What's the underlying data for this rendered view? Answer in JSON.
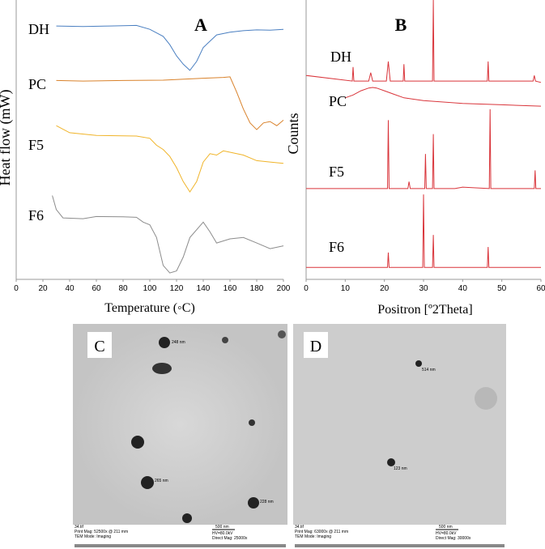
{
  "chart_data": [
    {
      "type": "line",
      "title": "A",
      "xlabel": "Temperature (◦C)",
      "ylabel": "Heat flow (mW)",
      "xlim": [
        0,
        200
      ],
      "xticks": [
        0,
        20,
        40,
        60,
        80,
        100,
        120,
        140,
        160,
        180,
        200
      ],
      "ylim": [
        0,
        100
      ],
      "series": [
        {
          "name": "DH",
          "color": "#4a7fc1",
          "x": [
            30,
            50,
            70,
            90,
            100,
            110,
            115,
            120,
            125,
            130,
            135,
            140,
            150,
            160,
            170,
            180,
            190,
            200
          ],
          "values": [
            90.7,
            90.5,
            90.7,
            90.9,
            89.5,
            87,
            84,
            80,
            77,
            74.8,
            78,
            83,
            87.5,
            88.5,
            89,
            89.3,
            89.2,
            89.5
          ]
        },
        {
          "name": "PC",
          "color": "#d9822b",
          "x": [
            30,
            50,
            80,
            110,
            140,
            155,
            160,
            165,
            170,
            175,
            180,
            185,
            190,
            195,
            200
          ],
          "values": [
            71.2,
            71,
            71.2,
            71.3,
            72,
            72.3,
            72.5,
            67,
            61,
            56,
            53.6,
            56,
            56.5,
            55,
            57
          ]
        },
        {
          "name": "F5",
          "color": "#f0b429",
          "x": [
            30,
            40,
            60,
            90,
            100,
            105,
            110,
            115,
            120,
            125,
            130,
            135,
            140,
            145,
            150,
            155,
            160,
            170,
            180,
            190,
            200
          ],
          "values": [
            55,
            52.5,
            51.5,
            51.3,
            50.5,
            48,
            46.5,
            44,
            40,
            35,
            31.3,
            35,
            42,
            45,
            44.5,
            46,
            45.5,
            44.5,
            42.5,
            42,
            41.5
          ]
        },
        {
          "name": "F6",
          "color": "#8c8c8c",
          "x": [
            27,
            30,
            35,
            50,
            60,
            80,
            90,
            95,
            100,
            105,
            110,
            115,
            120,
            125,
            130,
            140,
            145,
            150,
            160,
            170,
            180,
            190,
            200
          ],
          "values": [
            30,
            25,
            22,
            21.7,
            22.5,
            22.4,
            22.2,
            20.5,
            19.5,
            15,
            5,
            2.3,
            3,
            8,
            15,
            20.5,
            17,
            13,
            14.5,
            15,
            13,
            11,
            12
          ]
        }
      ]
    },
    {
      "type": "line",
      "title": "B",
      "xlabel": "Positron [º2Theta]",
      "ylabel": "Counts",
      "xlim": [
        0,
        60
      ],
      "xticks": [
        0,
        10,
        20,
        30,
        40,
        50,
        60
      ],
      "ylim": [
        0,
        100
      ],
      "series": [
        {
          "name": "DH",
          "color": "#d9343a",
          "x": [
            0,
            11.8,
            12,
            12.2,
            16,
            16.5,
            17,
            20.5,
            21,
            21.5,
            24.8,
            25,
            25.2,
            32.3,
            32.5,
            32.7,
            40,
            46.3,
            46.5,
            46.7,
            58,
            58.3,
            58.6,
            60
          ],
          "values": [
            73,
            71,
            76,
            71,
            71,
            74,
            71,
            71,
            78,
            71,
            71,
            77,
            71,
            71,
            100,
            71,
            71,
            71,
            78,
            71,
            71,
            73,
            71,
            70.5
          ]
        },
        {
          "name": "PC",
          "color": "#d9343a",
          "x": [
            10,
            12,
            14,
            16,
            17,
            18,
            20,
            22,
            25,
            30,
            40,
            50,
            60
          ],
          "values": [
            65,
            66,
            67.5,
            68.5,
            68.7,
            68.5,
            67.5,
            66.5,
            65,
            64,
            63,
            62.5,
            62
          ]
        },
        {
          "name": "F5",
          "color": "#d9343a",
          "x": [
            0,
            20.8,
            21,
            21.2,
            26,
            26.3,
            26.6,
            30.3,
            30.5,
            30.7,
            32.3,
            32.5,
            32.7,
            38,
            40,
            46.8,
            47,
            47.2,
            58.3,
            58.5,
            58.7,
            60
          ],
          "values": [
            32.5,
            32.5,
            57,
            32.5,
            32.5,
            35,
            32.5,
            32.5,
            44.9,
            32.5,
            32.5,
            52,
            32.5,
            32.5,
            33,
            32.5,
            60.9,
            32.5,
            32.5,
            39,
            32.5,
            32.5
          ]
        },
        {
          "name": "F6",
          "color": "#d9343a",
          "x": [
            0,
            20.8,
            21,
            21.2,
            29.8,
            30,
            30.2,
            32.3,
            32.5,
            32.7,
            46.3,
            46.5,
            46.7,
            60
          ],
          "values": [
            4.3,
            4.3,
            9.6,
            4.3,
            4.3,
            30.4,
            4.3,
            4.3,
            15.9,
            4.3,
            4.3,
            11.6,
            4.3,
            4.3
          ]
        }
      ]
    }
  ],
  "images": [
    {
      "label": "C",
      "sizes": [
        "248 nm",
        "265 nm",
        "228 nm"
      ],
      "footer": [
        "34.tif",
        "Print Mag: 52500x @ 211 mm",
        "TEM Mode: Imaging",
        "500 nm",
        "HV=80.0kV",
        "Direct Mag: 25000x"
      ]
    },
    {
      "label": "D",
      "sizes": [
        "514 nm",
        "123 nm"
      ],
      "footer": [
        "34.tif",
        "Print Mag: 63000x @ 211 mm",
        "TEM Mode: Imaging",
        "500 nm",
        "HV=80.0kV",
        "Direct Mag: 30000x"
      ]
    }
  ]
}
